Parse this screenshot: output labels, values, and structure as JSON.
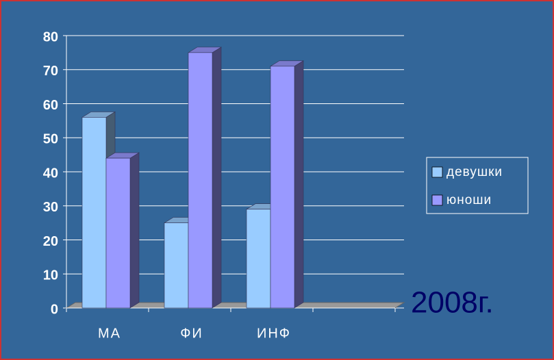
{
  "chart_data": {
    "type": "bar3d",
    "categories": [
      "МА",
      "ФИ",
      "ИНФ",
      null
    ],
    "series": [
      {
        "name": "девушки",
        "color": "#99ccff",
        "values": [
          56,
          25,
          29,
          null
        ]
      },
      {
        "name": "юноши",
        "color": "#9999ff",
        "values": [
          44,
          75,
          71,
          null
        ]
      }
    ],
    "ylim": [
      0,
      80
    ],
    "yticks": [
      0,
      10,
      20,
      30,
      40,
      50,
      60,
      70,
      80
    ],
    "grid": true,
    "legend": "right",
    "annotation": "2008г."
  }
}
